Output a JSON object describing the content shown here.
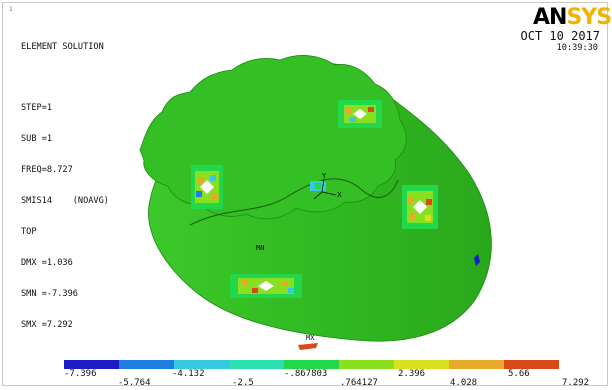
{
  "window": {
    "number": "1"
  },
  "brand": {
    "logo_text_a": "AN",
    "logo_text_b": "SYS"
  },
  "header": {
    "date": "OCT 10 2017",
    "time": "10:39:30"
  },
  "solution": {
    "lines": [
      "ELEMENT SOLUTION",
      "",
      "STEP=1",
      "SUB =1",
      "FREQ=8.727",
      "SMIS14    (NOAVG)",
      "TOP",
      "DMX =1.036",
      "SMN =-7.396",
      "SMX =7.292"
    ]
  },
  "model": {
    "mn_label": "MN",
    "mx_label": "MX",
    "axis_x": "X",
    "axis_y": "Y"
  },
  "colors": {
    "mesh_green": "#2fb51f",
    "bands": [
      "#1c1cc4",
      "#1e7ee0",
      "#38c8e0",
      "#2ee0b0",
      "#22d84a",
      "#88e020",
      "#d8e020",
      "#e8a828",
      "#d84a1a",
      "#d81818"
    ]
  },
  "legend": {
    "labels_top": [
      "-7.396",
      "-4.132",
      "-.867803",
      "2.396",
      "5.66"
    ],
    "labels_bottom": [
      "-5.764",
      "-2.5",
      ".764127",
      "4.028",
      "7.292"
    ]
  }
}
